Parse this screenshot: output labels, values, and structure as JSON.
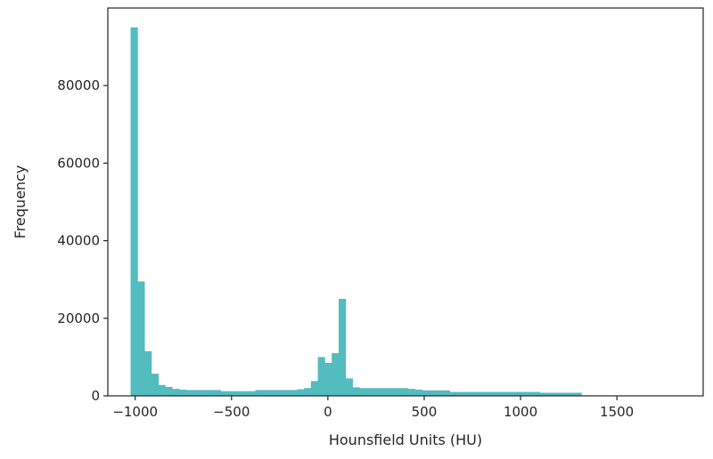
{
  "chart_data": {
    "type": "bar",
    "title": "",
    "xlabel": "Hounsfield Units (HU)",
    "ylabel": "Frequency",
    "bar_color": "#52BCBF",
    "axis_color": "#262626",
    "xlim": [
      -1142,
      1948
    ],
    "ylim": [
      0,
      100000
    ],
    "xticks": [
      -1000,
      -500,
      0,
      500,
      1000,
      1500
    ],
    "xtick_labels": [
      "−1000",
      "−500",
      "0",
      "500",
      "1000",
      "1500"
    ],
    "yticks": [
      0,
      20000,
      40000,
      60000,
      80000
    ],
    "ytick_labels": [
      "0",
      "20000",
      "40000",
      "60000",
      "80000"
    ],
    "bin_width": 36,
    "bin_edges": [
      -1024,
      1316
    ],
    "values": [
      95000,
      29500,
      11500,
      5700,
      2800,
      2300,
      1800,
      1600,
      1500,
      1500,
      1500,
      1500,
      1500,
      1200,
      1200,
      1200,
      1200,
      1200,
      1500,
      1500,
      1500,
      1500,
      1500,
      1500,
      1700,
      2000,
      3800,
      10000,
      8500,
      11000,
      25000,
      4500,
      2200,
      2000,
      2000,
      2000,
      2000,
      2000,
      2000,
      2000,
      1800,
      1600,
      1400,
      1400,
      1400,
      1400,
      1000,
      1000,
      1000,
      1000,
      1000,
      1000,
      1000,
      1000,
      1000,
      1000,
      1000,
      1000,
      1000,
      800,
      800,
      800,
      800,
      800,
      800
    ],
    "grid": false,
    "legend": "none"
  }
}
